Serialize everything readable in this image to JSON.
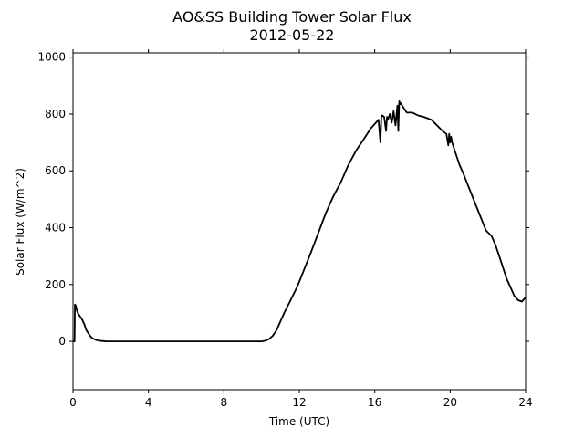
{
  "chart_data": {
    "type": "line",
    "title": "AO&SS Building Tower Solar Flux",
    "subtitle": "2012-05-22",
    "xlabel": "Time (UTC)",
    "ylabel": "Solar Flux (W/m^2)",
    "xlim": [
      0,
      24
    ],
    "ylim": [
      -170,
      1015
    ],
    "xticks": [
      0,
      4,
      8,
      12,
      16,
      20,
      24
    ],
    "yticks": [
      0,
      200,
      400,
      600,
      800,
      1000
    ],
    "grid": false,
    "legend": "none",
    "series": [
      {
        "color": "#000000",
        "x": [
          0.0,
          0.08,
          0.1,
          0.15,
          0.2,
          0.25,
          0.3,
          0.4,
          0.5,
          0.6,
          0.7,
          0.8,
          0.9,
          1.0,
          1.2,
          1.4,
          1.6,
          1.8,
          2.0,
          3.0,
          4.0,
          5.0,
          6.0,
          7.0,
          8.0,
          9.0,
          10.0,
          10.2,
          10.4,
          10.6,
          10.8,
          11.0,
          11.2,
          11.5,
          11.8,
          12.0,
          12.3,
          12.6,
          13.0,
          13.4,
          13.8,
          14.2,
          14.6,
          15.0,
          15.4,
          15.8,
          16.0,
          16.2,
          16.3,
          16.35,
          16.4,
          16.5,
          16.6,
          16.65,
          16.7,
          16.8,
          16.9,
          17.0,
          17.1,
          17.2,
          17.25,
          17.3,
          17.35,
          17.4,
          17.45,
          17.5,
          17.6,
          17.7,
          18.0,
          18.3,
          18.6,
          19.0,
          19.3,
          19.6,
          19.8,
          19.9,
          19.95,
          20.0,
          20.05,
          20.1,
          20.3,
          20.5,
          20.7,
          21.0,
          21.3,
          21.6,
          21.9,
          22.2,
          22.4,
          22.5,
          22.6,
          22.8,
          23.0,
          23.2,
          23.4,
          23.6,
          23.8,
          24.0
        ],
        "y": [
          0,
          0,
          130,
          125,
          110,
          100,
          95,
          85,
          75,
          60,
          40,
          30,
          20,
          12,
          5,
          2,
          1,
          0,
          0,
          0,
          0,
          0,
          0,
          0,
          0,
          0,
          0,
          2,
          8,
          20,
          40,
          70,
          100,
          140,
          180,
          210,
          260,
          310,
          380,
          450,
          510,
          560,
          620,
          670,
          710,
          750,
          765,
          780,
          700,
          790,
          795,
          790,
          740,
          790,
          780,
          800,
          770,
          810,
          760,
          830,
          740,
          845,
          835,
          838,
          830,
          825,
          815,
          805,
          805,
          795,
          790,
          780,
          760,
          740,
          730,
          690,
          730,
          700,
          720,
          700,
          660,
          620,
          590,
          540,
          490,
          440,
          390,
          370,
          340,
          320,
          300,
          260,
          220,
          190,
          160,
          145,
          140,
          155
        ]
      }
    ]
  }
}
